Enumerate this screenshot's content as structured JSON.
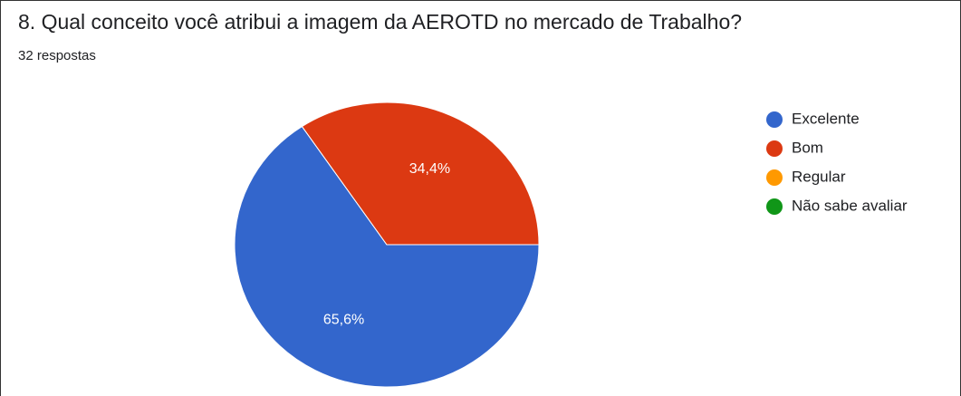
{
  "chart_data": {
    "type": "pie",
    "title": "8. Qual conceito você atribui a imagem da AEROTD no mercado de Trabalho?",
    "subtitle": "32 respostas",
    "categories": [
      "Excelente",
      "Bom",
      "Regular",
      "Não sabe avaliar"
    ],
    "values": [
      65.6,
      34.4,
      0,
      0
    ],
    "value_labels": [
      "65,6%",
      "34,4%",
      null,
      null
    ],
    "colors": [
      "#3366cc",
      "#dc3912",
      "#ff9900",
      "#109618"
    ],
    "legend": "right"
  }
}
